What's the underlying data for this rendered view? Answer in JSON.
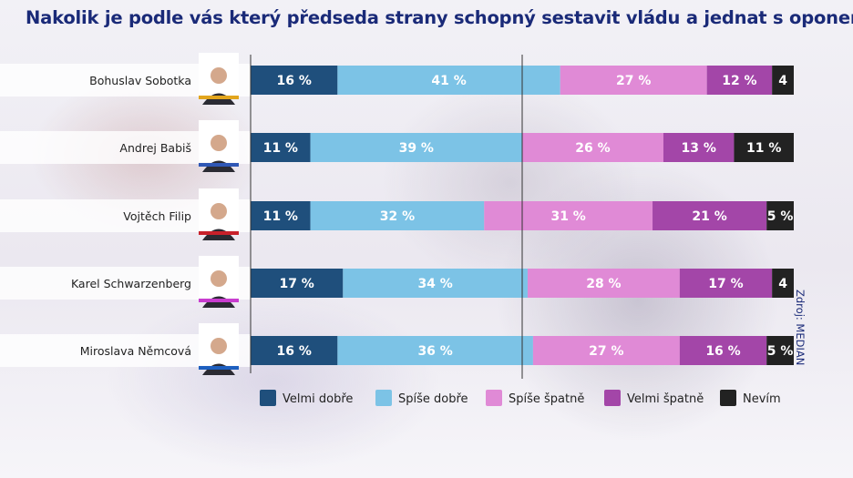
{
  "title": "Nakolik je podle vás který předseda strany schopný sestavit vládu a jednat s oponenty?",
  "source": "Zdroj: MEDIAN",
  "colors": {
    "velmi_dobre": "#1f4f7c",
    "spise_dobre": "#7cc3e6",
    "spise_spatne": "#e08ad6",
    "velmi_spatne": "#a346a8",
    "nevim": "#222222"
  },
  "chart_data": {
    "type": "bar",
    "orientation": "horizontal",
    "stacked": true,
    "categories": [
      "Bohuslav Sobotka",
      "Andrej Babiš",
      "Vojtěch Filip",
      "Karel Schwarzenberg",
      "Miroslava Němcová"
    ],
    "series": [
      {
        "name": "Velmi dobře",
        "color": "#1f4f7c",
        "values": [
          16,
          11,
          11,
          17,
          16
        ],
        "labels": [
          "16 %",
          "11 %",
          "11 %",
          "17 %",
          "16 %"
        ]
      },
      {
        "name": "Spíše dobře",
        "color": "#7cc3e6",
        "values": [
          41,
          39,
          32,
          34,
          36
        ],
        "labels": [
          "41 %",
          "39 %",
          "32 %",
          "34 %",
          "36 %"
        ]
      },
      {
        "name": "Spíše špatně",
        "color": "#e08ad6",
        "values": [
          27,
          26,
          31,
          28,
          27
        ],
        "labels": [
          "27 %",
          "26 %",
          "31 %",
          "28 %",
          "27 %"
        ]
      },
      {
        "name": "Velmi špatně",
        "color": "#a346a8",
        "values": [
          12,
          13,
          21,
          17,
          16
        ],
        "labels": [
          "12 %",
          "13 %",
          "21 %",
          "17 %",
          "16 %"
        ]
      },
      {
        "name": "Nevím",
        "color": "#222222",
        "values": [
          4,
          11,
          5,
          4,
          5
        ],
        "labels": [
          "4",
          "11 %",
          "5 %",
          "4",
          "5 %"
        ]
      }
    ],
    "xlim": [
      0,
      100
    ],
    "legend_position": "bottom"
  }
}
